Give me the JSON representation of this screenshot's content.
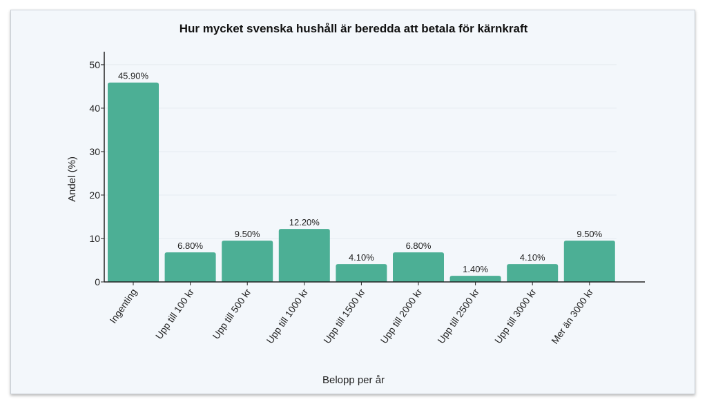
{
  "chart_data": {
    "type": "bar",
    "title": "Hur mycket svenska hushåll är beredda att betala för kärnkraft",
    "xlabel": "Belopp per år",
    "ylabel": "Andel (%)",
    "categories": [
      "Ingenting",
      "Upp till 100 kr",
      "Upp till 500 kr",
      "Upp till 1000 kr",
      "Upp till 1500 kr",
      "Upp till 2000 kr",
      "Upp till 2500 kr",
      "Upp till 3000 kr",
      "Mer än 3000 kr"
    ],
    "values": [
      45.9,
      6.8,
      9.5,
      12.2,
      4.1,
      6.8,
      1.4,
      4.1,
      9.5
    ],
    "data_labels": [
      "45.90%",
      "6.80%",
      "9.50%",
      "12.20%",
      "4.10%",
      "6.80%",
      "1.40%",
      "4.10%",
      "9.50%"
    ],
    "yticks": [
      0,
      10,
      20,
      30,
      40,
      50
    ],
    "ylim": [
      0,
      53
    ],
    "grid": true,
    "bar_color": "#4caf95"
  }
}
